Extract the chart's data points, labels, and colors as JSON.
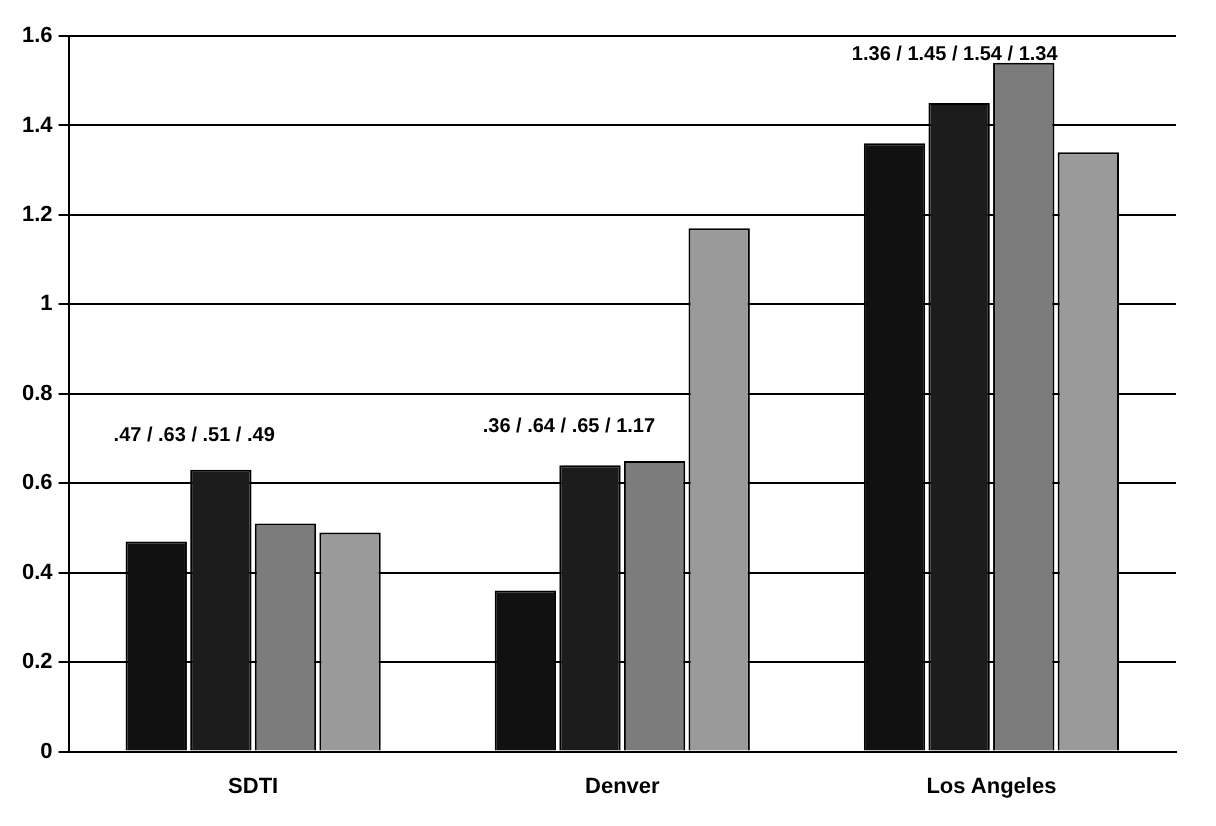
{
  "chart_data": {
    "type": "bar",
    "categories": [
      "SDTI",
      "Denver",
      "Los Angeles"
    ],
    "series": [
      {
        "color": "#111111",
        "values": [
          0.47,
          0.36,
          1.36
        ]
      },
      {
        "color": "#1c1c1c",
        "values": [
          0.63,
          0.64,
          1.45
        ]
      },
      {
        "color": "#7c7c7c",
        "values": [
          0.51,
          0.65,
          1.54
        ]
      },
      {
        "color": "#9a9a9a",
        "values": [
          0.49,
          1.17,
          1.34
        ]
      }
    ],
    "ylim": [
      0,
      1.6
    ],
    "yticks": [
      0,
      0.2,
      0.4,
      0.6,
      0.8,
      1,
      1.2,
      1.4,
      1.6
    ],
    "grid": "y",
    "legend": false,
    "annotations": [
      ".47 / .63 / .51 / .49",
      ".36 / .64 / .65 / 1.17",
      "1.36 / 1.45 / 1.54 / 1.34"
    ]
  }
}
